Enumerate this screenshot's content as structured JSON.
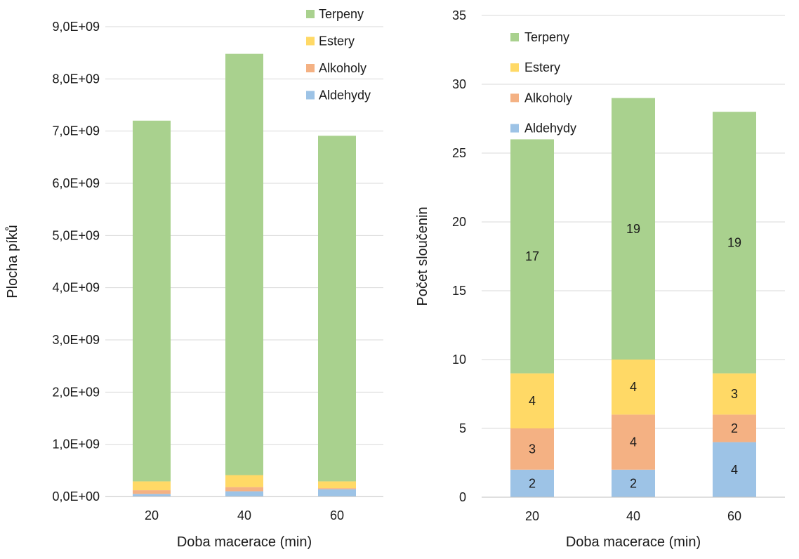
{
  "chart_data": [
    {
      "type": "bar",
      "stacked": true,
      "categories": [
        "20",
        "40",
        "60"
      ],
      "xlabel": "Doba macerace (min)",
      "ylabel": "Plocha píků",
      "ylim": [
        0,
        9000000000
      ],
      "yticks": [
        0,
        1000000000,
        2000000000,
        3000000000,
        4000000000,
        5000000000,
        6000000000,
        7000000000,
        8000000000,
        9000000000
      ],
      "ytick_labels": [
        "0,0E+00",
        "1,0E+09",
        "2,0E+09",
        "3,0E+09",
        "4,0E+09",
        "5,0E+09",
        "6,0E+09",
        "7,0E+09",
        "8,0E+09",
        "9,0E+09"
      ],
      "grid": true,
      "legend_position": "top-right",
      "series": [
        {
          "name": "Aldehydy",
          "color": "#9dc3e6",
          "values": [
            50000000,
            100000000,
            140000000
          ]
        },
        {
          "name": "Alkoholy",
          "color": "#f4b183",
          "values": [
            70000000,
            80000000,
            20000000
          ]
        },
        {
          "name": "Estery",
          "color": "#ffd966",
          "values": [
            170000000,
            230000000,
            130000000
          ]
        },
        {
          "name": "Terpeny",
          "color": "#a9d18e",
          "values": [
            6910000000,
            8070000000,
            6620000000
          ]
        }
      ]
    },
    {
      "type": "bar",
      "stacked": true,
      "categories": [
        "20",
        "40",
        "60"
      ],
      "xlabel": "Doba macerace (min)",
      "ylabel": "Počet sloučenin",
      "ylim": [
        0,
        35
      ],
      "yticks": [
        0,
        5,
        10,
        15,
        20,
        25,
        30,
        35
      ],
      "ytick_labels": [
        "0",
        "5",
        "10",
        "15",
        "20",
        "25",
        "30",
        "35"
      ],
      "grid": true,
      "legend_position": "top-left",
      "data_labels": true,
      "series": [
        {
          "name": "Aldehydy",
          "color": "#9dc3e6",
          "values": [
            2,
            2,
            4
          ]
        },
        {
          "name": "Alkoholy",
          "color": "#f4b183",
          "values": [
            3,
            4,
            2
          ]
        },
        {
          "name": "Estery",
          "color": "#ffd966",
          "values": [
            4,
            4,
            3
          ]
        },
        {
          "name": "Terpeny",
          "color": "#a9d18e",
          "values": [
            17,
            19,
            19
          ]
        }
      ]
    }
  ]
}
